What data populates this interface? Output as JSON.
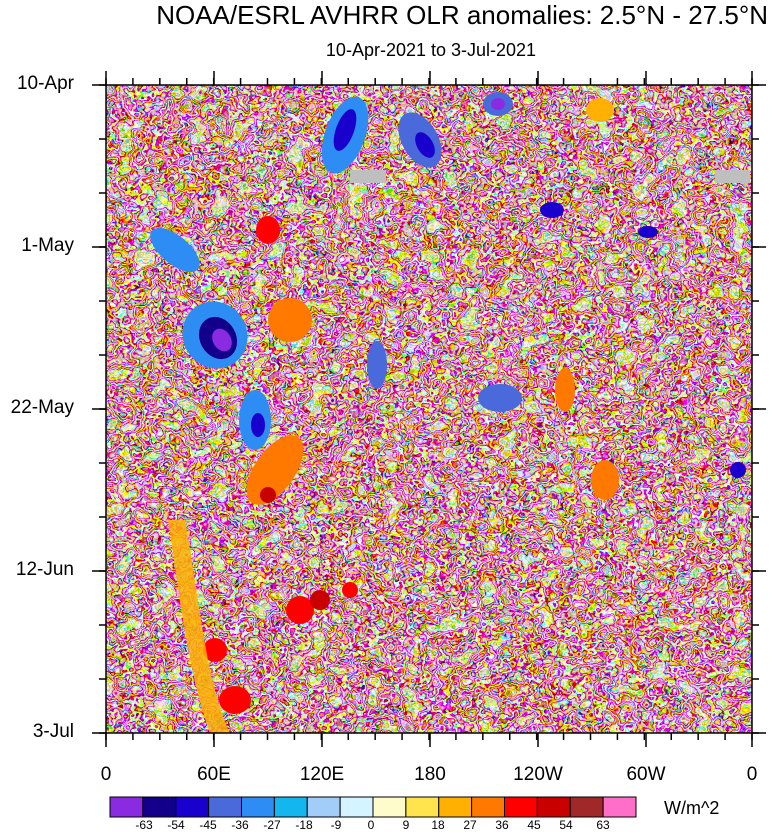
{
  "chart_data": {
    "type": "heatmap",
    "title": "NOAA/ESRL AVHRR OLR anomalies: 2.5°N - 27.5°N",
    "subtitle": "10-Apr-2021 to 3-Jul-2021",
    "y_axis": {
      "direction": "time increasing downward",
      "tick_labels": [
        "10-Apr",
        "1-May",
        "22-May",
        "12-Jun",
        "3-Jul"
      ]
    },
    "x_axis": {
      "tick_labels": [
        "0",
        "60E",
        "120E",
        "180",
        "120W",
        "60W",
        "0"
      ]
    },
    "colorbar": {
      "units": "W/m^2",
      "levels": [
        "-63",
        "-54",
        "-45",
        "-36",
        "-27",
        "-18",
        "-9",
        "0",
        "9",
        "18",
        "27",
        "36",
        "45",
        "54",
        "63"
      ],
      "colors": [
        "#8a2be2",
        "#12008a",
        "#1a00cc",
        "#4a6adb",
        "#2e8cf5",
        "#14b6f0",
        "#a2cdf8",
        "#d4f4ff",
        "#fffccc",
        "#ffe44d",
        "#ffb000",
        "#ff7800",
        "#ff0000",
        "#c80000",
        "#a02828",
        "#ff6ec8"
      ]
    },
    "missing_color": "#bfbfbf"
  }
}
